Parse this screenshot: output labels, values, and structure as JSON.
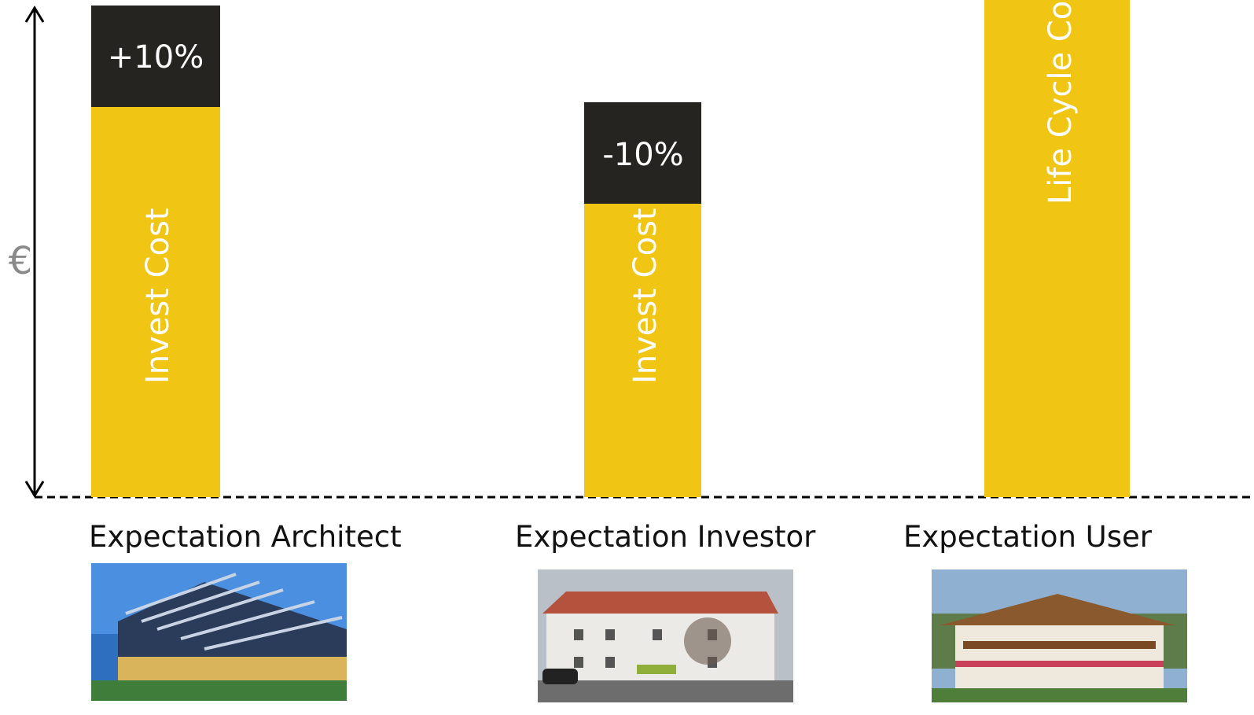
{
  "y_axis_label": "€",
  "columns": [
    {
      "label": "Expectation Architect",
      "base": "Invest Cost",
      "top": "+10%"
    },
    {
      "label": "Expectation Investor",
      "base": "Invest Cost",
      "top": "-10%"
    },
    {
      "label": "Expectation User",
      "base": "Life Cycle Cost"
    }
  ]
}
